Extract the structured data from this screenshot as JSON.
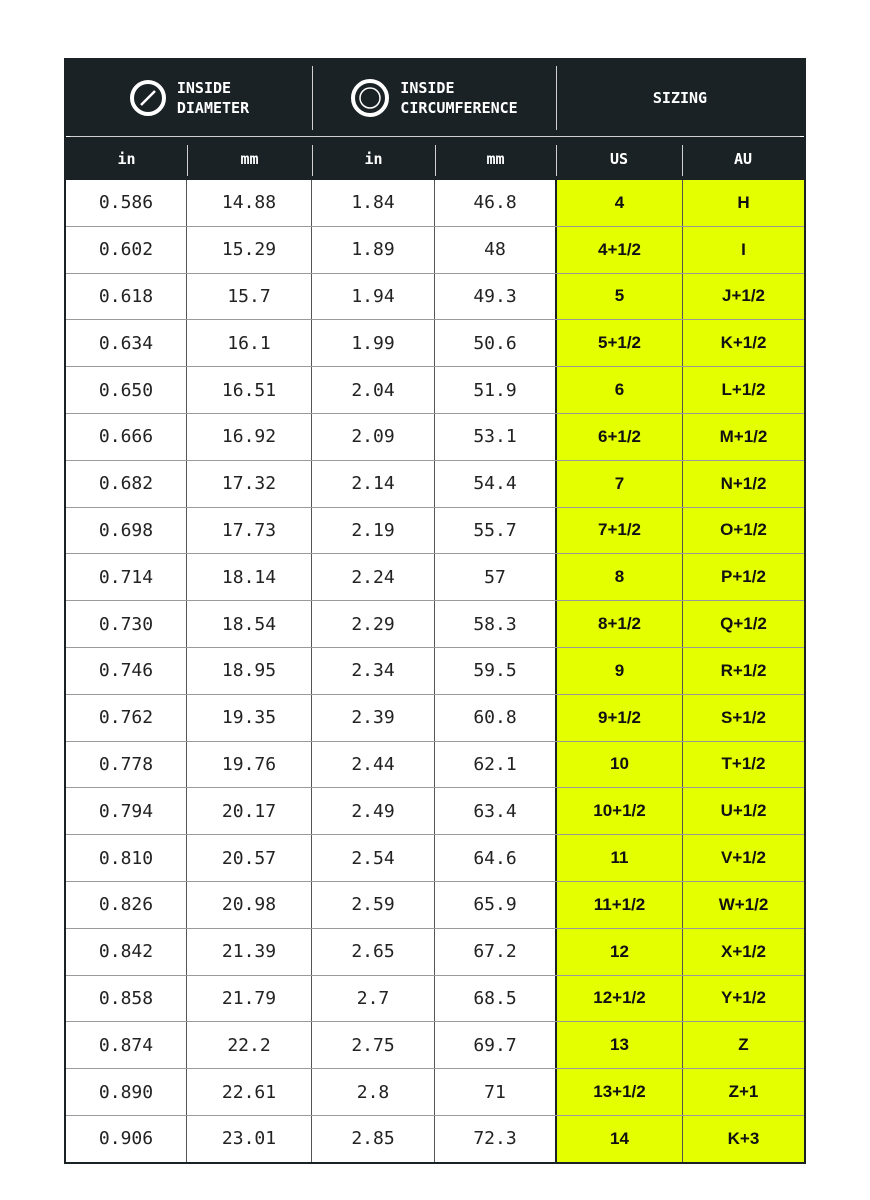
{
  "header": {
    "groups": [
      {
        "line1": "INSIDE",
        "line2": "DIAMETER",
        "icon": "diameter-icon"
      },
      {
        "line1": "INSIDE",
        "line2": "CIRCUMFERENCE",
        "icon": "circumference-icon"
      },
      {
        "label": "SIZING"
      }
    ],
    "columns": [
      "in",
      "mm",
      "in",
      "mm",
      "US",
      "AU"
    ]
  },
  "colors": {
    "header_bg": "#1a2226",
    "sizing_bg": "#e4ff00"
  },
  "rows": [
    [
      "0.586",
      "14.88",
      "1.84",
      "46.8",
      "4",
      "H"
    ],
    [
      "0.602",
      "15.29",
      "1.89",
      "48",
      "4+1/2",
      "I"
    ],
    [
      "0.618",
      "15.7",
      "1.94",
      "49.3",
      "5",
      "J+1/2"
    ],
    [
      "0.634",
      "16.1",
      "1.99",
      "50.6",
      "5+1/2",
      "K+1/2"
    ],
    [
      "0.650",
      "16.51",
      "2.04",
      "51.9",
      "6",
      "L+1/2"
    ],
    [
      "0.666",
      "16.92",
      "2.09",
      "53.1",
      "6+1/2",
      "M+1/2"
    ],
    [
      "0.682",
      "17.32",
      "2.14",
      "54.4",
      "7",
      "N+1/2"
    ],
    [
      "0.698",
      "17.73",
      "2.19",
      "55.7",
      "7+1/2",
      "O+1/2"
    ],
    [
      "0.714",
      "18.14",
      "2.24",
      "57",
      "8",
      "P+1/2"
    ],
    [
      "0.730",
      "18.54",
      "2.29",
      "58.3",
      "8+1/2",
      "Q+1/2"
    ],
    [
      "0.746",
      "18.95",
      "2.34",
      "59.5",
      "9",
      "R+1/2"
    ],
    [
      "0.762",
      "19.35",
      "2.39",
      "60.8",
      "9+1/2",
      "S+1/2"
    ],
    [
      "0.778",
      "19.76",
      "2.44",
      "62.1",
      "10",
      "T+1/2"
    ],
    [
      "0.794",
      "20.17",
      "2.49",
      "63.4",
      "10+1/2",
      "U+1/2"
    ],
    [
      "0.810",
      "20.57",
      "2.54",
      "64.6",
      "11",
      "V+1/2"
    ],
    [
      "0.826",
      "20.98",
      "2.59",
      "65.9",
      "11+1/2",
      "W+1/2"
    ],
    [
      "0.842",
      "21.39",
      "2.65",
      "67.2",
      "12",
      "X+1/2"
    ],
    [
      "0.858",
      "21.79",
      "2.7",
      "68.5",
      "12+1/2",
      "Y+1/2"
    ],
    [
      "0.874",
      "22.2",
      "2.75",
      "69.7",
      "13",
      "Z"
    ],
    [
      "0.890",
      "22.61",
      "2.8",
      "71",
      "13+1/2",
      "Z+1"
    ],
    [
      "0.906",
      "23.01",
      "2.85",
      "72.3",
      "14",
      "K+3"
    ]
  ]
}
